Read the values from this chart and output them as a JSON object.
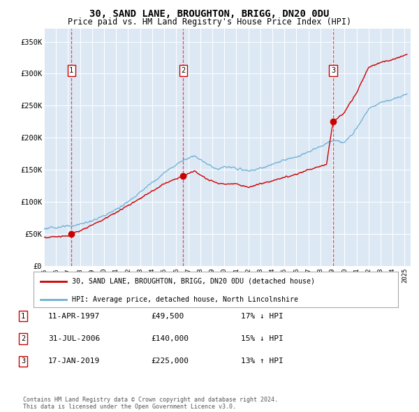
{
  "title": "30, SAND LANE, BROUGHTON, BRIGG, DN20 0DU",
  "subtitle": "Price paid vs. HM Land Registry's House Price Index (HPI)",
  "xlim_start": 1995.0,
  "xlim_end": 2025.5,
  "ylim": [
    0,
    370000
  ],
  "plot_bg": "#dce9f5",
  "transactions": [
    {
      "date_num": 1997.28,
      "price": 49500,
      "label": "1"
    },
    {
      "date_num": 2006.58,
      "price": 140000,
      "label": "2"
    },
    {
      "date_num": 2019.05,
      "price": 225000,
      "label": "3"
    }
  ],
  "legend_entries": [
    "30, SAND LANE, BROUGHTON, BRIGG, DN20 0DU (detached house)",
    "HPI: Average price, detached house, North Lincolnshire"
  ],
  "table_data": [
    [
      "1",
      "11-APR-1997",
      "£49,500",
      "17% ↓ HPI"
    ],
    [
      "2",
      "31-JUL-2006",
      "£140,000",
      "15% ↓ HPI"
    ],
    [
      "3",
      "17-JAN-2019",
      "£225,000",
      "13% ↑ HPI"
    ]
  ],
  "footer": "Contains HM Land Registry data © Crown copyright and database right 2024.\nThis data is licensed under the Open Government Licence v3.0.",
  "hpi_color": "#6baed6",
  "price_color": "#cc0000",
  "yticks": [
    0,
    50000,
    100000,
    150000,
    200000,
    250000,
    300000,
    350000
  ],
  "ytick_labels": [
    "£0",
    "£50K",
    "£100K",
    "£150K",
    "£200K",
    "£250K",
    "£300K",
    "£350K"
  ],
  "xtick_years": [
    1995,
    1996,
    1997,
    1998,
    1999,
    2000,
    2001,
    2002,
    2003,
    2004,
    2005,
    2006,
    2007,
    2008,
    2009,
    2010,
    2011,
    2012,
    2013,
    2014,
    2015,
    2016,
    2017,
    2018,
    2019,
    2020,
    2021,
    2022,
    2023,
    2024,
    2025
  ],
  "hpi_anchors_x": [
    1995.0,
    1996.0,
    1997.28,
    1998.0,
    1999.0,
    2000.0,
    2001.0,
    2002.0,
    2003.0,
    2004.0,
    2005.0,
    2006.0,
    2006.58,
    2007.5,
    2008.5,
    2009.5,
    2010.0,
    2011.0,
    2012.0,
    2013.0,
    2014.0,
    2015.0,
    2016.0,
    2017.0,
    2018.0,
    2019.05,
    2020.0,
    2021.0,
    2022.0,
    2023.0,
    2024.0,
    2025.2
  ],
  "hpi_anchors_y": [
    58000,
    60000,
    62000,
    65000,
    70000,
    78000,
    88000,
    100000,
    115000,
    130000,
    145000,
    158000,
    165000,
    172000,
    160000,
    150000,
    155000,
    152000,
    148000,
    152000,
    158000,
    165000,
    170000,
    178000,
    186000,
    196000,
    192000,
    215000,
    245000,
    255000,
    260000,
    268000
  ],
  "prop_anchors_x": [
    1995.0,
    1997.0,
    1997.28,
    1998.0,
    1999.5,
    2001.0,
    2003.0,
    2005.0,
    2006.0,
    2006.58,
    2007.5,
    2008.5,
    2009.5,
    2011.0,
    2012.0,
    2013.0,
    2014.0,
    2015.0,
    2016.0,
    2017.0,
    2018.5,
    2019.05,
    2020.0,
    2021.0,
    2022.0,
    2023.0,
    2024.0,
    2025.2
  ],
  "prop_anchors_y": [
    44000,
    47000,
    49500,
    55000,
    68000,
    83000,
    105000,
    128000,
    136000,
    140000,
    148000,
    136000,
    128000,
    128000,
    122000,
    128000,
    132000,
    138000,
    143000,
    150000,
    158000,
    225000,
    240000,
    270000,
    310000,
    318000,
    322000,
    330000
  ]
}
